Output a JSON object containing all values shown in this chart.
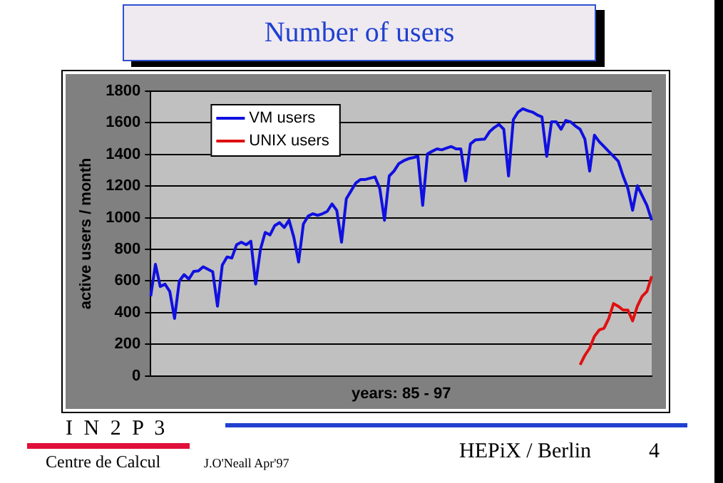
{
  "chart_data": {
    "type": "line",
    "title": "Number of users",
    "xlabel": "years: 85 - 97",
    "ylabel": "active users / month",
    "categories": [
      null,
      null,
      null,
      null,
      null,
      null,
      null,
      null,
      null,
      null,
      null,
      null,
      null,
      null,
      null,
      null,
      null,
      null,
      null,
      null,
      null,
      null,
      null,
      null,
      null,
      null,
      null,
      null,
      null,
      null,
      null,
      null,
      null,
      null,
      null,
      null,
      null,
      null,
      null,
      null,
      null,
      null,
      null,
      null,
      null,
      null,
      null,
      null,
      null,
      null,
      null,
      null,
      null,
      null,
      null,
      null,
      null,
      null,
      null,
      null,
      null,
      null,
      null,
      null,
      null,
      null,
      null,
      null,
      null,
      null,
      null,
      null,
      null,
      null,
      null,
      null,
      null,
      null,
      null,
      null,
      null,
      null,
      null,
      null,
      null,
      null,
      null,
      null,
      null,
      null,
      null,
      null,
      null,
      null,
      null,
      null,
      null,
      null,
      null,
      null,
      null,
      null,
      null,
      null,
      null,
      null
    ],
    "series": [
      {
        "name": "VM users",
        "color": "#1010e0",
        "values": [
          503,
          705,
          565,
          580,
          534,
          363,
          600,
          640,
          612,
          660,
          664,
          690,
          674,
          658,
          441,
          700,
          752,
          745,
          829,
          845,
          829,
          851,
          580,
          800,
          907,
          891,
          950,
          969,
          938,
          984,
          876,
          720,
          960,
          1010,
          1025,
          1015,
          1025,
          1040,
          1087,
          1046,
          845,
          1120,
          1170,
          1220,
          1242,
          1242,
          1250,
          1258,
          1186,
          984,
          1264,
          1295,
          1342,
          1360,
          1373,
          1380,
          1388,
          1078,
          1404,
          1420,
          1435,
          1429,
          1440,
          1450,
          1435,
          1435,
          1233,
          1466,
          1491,
          1495,
          1497,
          1543,
          1570,
          1590,
          1559,
          1264,
          1620,
          1668,
          1689,
          1677,
          1668,
          1650,
          1637,
          1388,
          1606,
          1606,
          1559,
          1615,
          1606,
          1580,
          1559,
          1497,
          1295,
          1522,
          1481,
          1450,
          1419,
          1388,
          1357,
          1264,
          1186,
          1047,
          1202,
          1140,
          1078,
          984
        ]
      },
      {
        "name": "UNIX users",
        "color": "#e01010",
        "values": [
          null,
          null,
          null,
          null,
          null,
          null,
          null,
          null,
          null,
          null,
          null,
          null,
          null,
          null,
          null,
          null,
          null,
          null,
          null,
          null,
          null,
          null,
          null,
          null,
          null,
          null,
          null,
          null,
          null,
          null,
          null,
          null,
          null,
          null,
          null,
          null,
          null,
          null,
          null,
          null,
          null,
          null,
          null,
          null,
          null,
          null,
          null,
          null,
          null,
          null,
          null,
          null,
          null,
          null,
          null,
          null,
          null,
          null,
          null,
          null,
          null,
          null,
          null,
          null,
          null,
          null,
          null,
          null,
          null,
          null,
          null,
          null,
          null,
          null,
          null,
          null,
          null,
          null,
          null,
          null,
          null,
          null,
          null,
          null,
          null,
          null,
          null,
          null,
          null,
          null,
          70,
          130,
          175,
          250,
          290,
          301,
          363,
          457,
          440,
          416,
          416,
          348,
          441,
          503,
          534,
          630
        ]
      }
    ],
    "ylim": [
      0,
      1800
    ],
    "yticks": [
      0,
      200,
      400,
      600,
      800,
      1000,
      1200,
      1400,
      1600,
      1800
    ],
    "grid": "y",
    "legend": "top left",
    "marker": "none",
    "line_style": "solid",
    "tick_labels": "y",
    "annotations": [
      "I N 2 P 3",
      "Centre de Calcul",
      "J.O'Neall Apr'97",
      "HEPiX / Berlin",
      "4"
    ]
  }
}
